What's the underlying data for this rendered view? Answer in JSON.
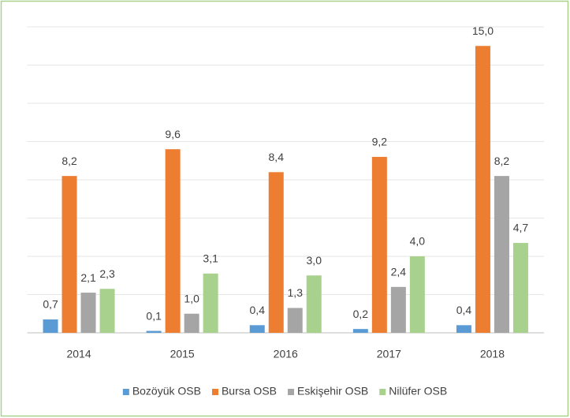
{
  "chart_data": {
    "type": "bar",
    "categories": [
      "2014",
      "2015",
      "2016",
      "2017",
      "2018"
    ],
    "series": [
      {
        "name": "Bozöyük OSB",
        "color": "#5b9bd5",
        "values": [
          0.7,
          0.1,
          0.4,
          0.2,
          0.4
        ],
        "value_labels": [
          "0,7",
          "0,1",
          "0,4",
          "0,2",
          "0,4"
        ]
      },
      {
        "name": "Bursa OSB",
        "color": "#ed7d31",
        "values": [
          8.2,
          9.6,
          8.4,
          9.2,
          15.0
        ],
        "value_labels": [
          "8,2",
          "9,6",
          "8,4",
          "9,2",
          "15,0"
        ]
      },
      {
        "name": "Eskişehir OSB",
        "color": "#a5a5a5",
        "values": [
          2.1,
          1.0,
          1.3,
          2.4,
          8.2
        ],
        "value_labels": [
          "2,1",
          "1,0",
          "1,3",
          "2,4",
          "8,2"
        ]
      },
      {
        "name": "Nilüfer OSB",
        "color": "#a9d18e",
        "values": [
          2.3,
          3.1,
          3.0,
          4.0,
          4.7
        ],
        "value_labels": [
          "2,3",
          "3,1",
          "3,0",
          "4,0",
          "4,7"
        ]
      }
    ],
    "ylim": [
      0,
      16
    ],
    "yticks": [
      0,
      2,
      4,
      6,
      8,
      10,
      12,
      14,
      16
    ],
    "grid": true,
    "legend": "bottom"
  }
}
